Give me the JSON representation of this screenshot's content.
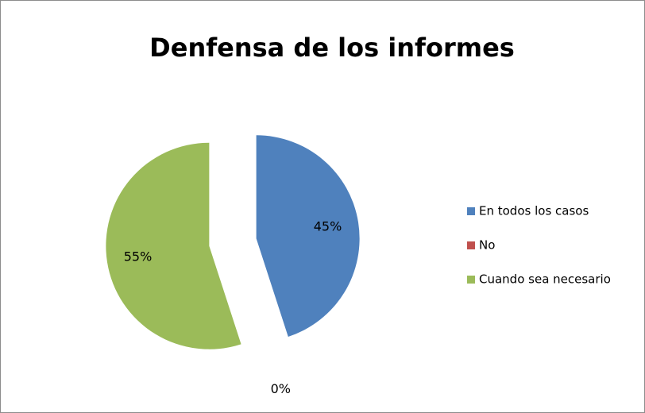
{
  "chart_data": {
    "type": "pie",
    "title": "Denfensa de los informes",
    "categories": [
      "En todos los casos",
      "No",
      "Cuando sea necesario"
    ],
    "values": [
      45,
      0,
      55
    ],
    "value_labels": [
      "45%",
      "0%",
      "55%"
    ],
    "colors": [
      "#4f81bd",
      "#c0504d",
      "#9bbb59"
    ],
    "exploded": true,
    "legend": "right"
  }
}
